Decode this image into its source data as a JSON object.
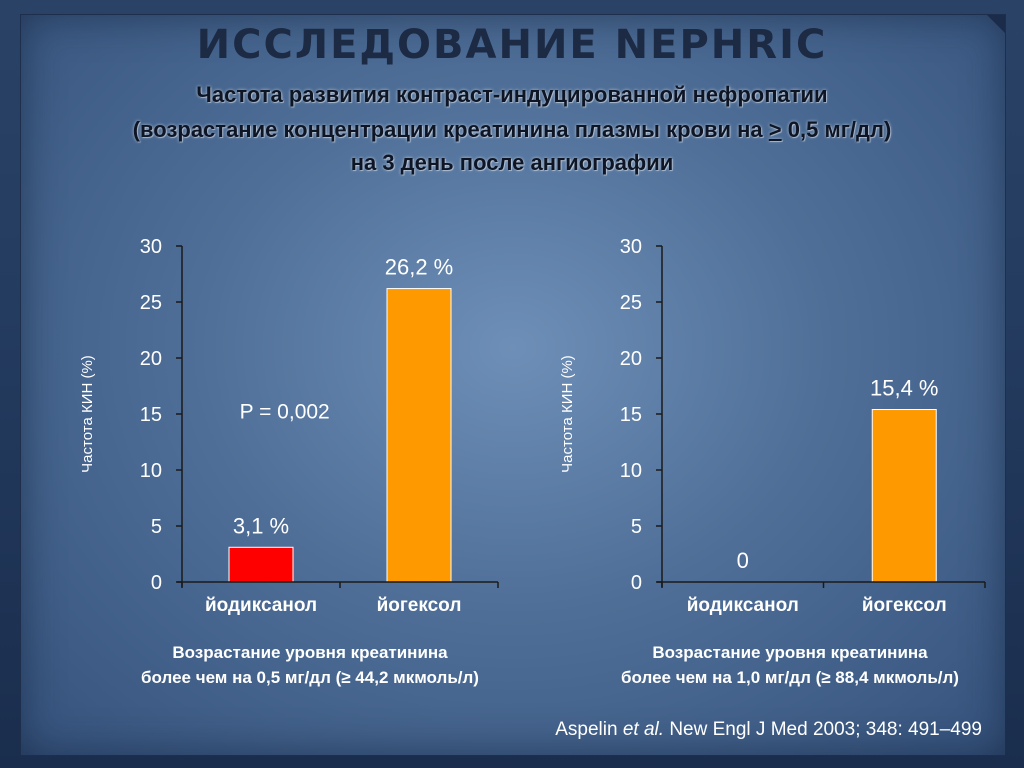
{
  "slide": {
    "title": "ИССЛЕДОВАНИЕ NEPHRIC",
    "subtitle": {
      "line1": "Частота развития контраст-индуцированной нефропатии",
      "line2_before": "(возрастание концентрации креатинина плазмы крови на ",
      "line2_symbol": ">",
      "line2_after": " 0,5 мг/дл)",
      "line3": "на 3 день после ангиографии"
    },
    "captions": {
      "left": {
        "line1": "Возрастание уровня креатинина",
        "line2": "более чем на 0,5 мг/дл (≥ 44,2 мкмоль/л)"
      },
      "right": {
        "line1": "Возрастание уровня креатинина",
        "line2": "более чем на 1,0 мг/дл (≥ 88,4 мкмоль/л)"
      }
    },
    "citation": {
      "author": "Aspelin ",
      "etal": "et al.",
      "rest": " New Engl J Med 2003; 348: 491–499"
    }
  },
  "chart_data": [
    {
      "type": "bar",
      "ylabel": "Частота КИН (%)",
      "categories": [
        "йодиксанол",
        "йогексол"
      ],
      "values": [
        3.1,
        26.2
      ],
      "value_labels": [
        "3,1 %",
        "26,2 %"
      ],
      "bar_colors": [
        "#ff0000",
        "#ff9900"
      ],
      "ylim": [
        0,
        30
      ],
      "yticks": [
        "0",
        "5",
        "10",
        "15",
        "20",
        "25",
        "30"
      ],
      "annotation": "P = 0,002",
      "grid": false
    },
    {
      "type": "bar",
      "ylabel": "Частота КИН (%)",
      "categories": [
        "йодиксанол",
        "йогексол"
      ],
      "values": [
        0,
        15.4
      ],
      "value_labels": [
        "0",
        "15,4 %"
      ],
      "bar_colors": [
        "#ff0000",
        "#ff9900"
      ],
      "ylim": [
        0,
        30
      ],
      "yticks": [
        "0",
        "5",
        "10",
        "15",
        "20",
        "25",
        "30"
      ],
      "grid": false
    }
  ]
}
